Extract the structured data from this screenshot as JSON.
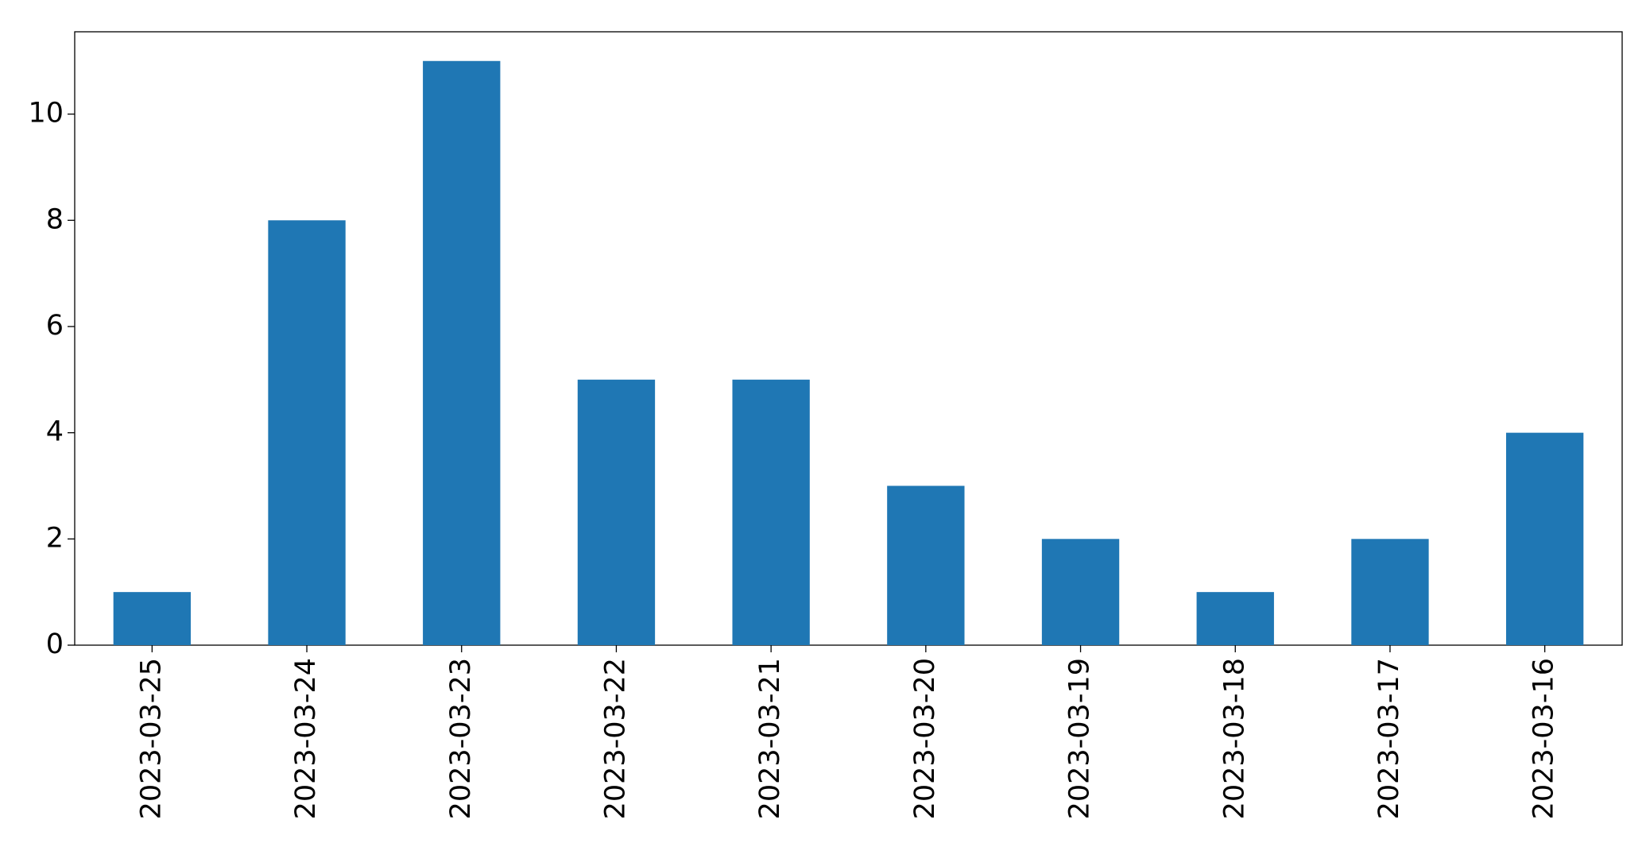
{
  "chart_data": {
    "type": "bar",
    "categories": [
      "2023-03-25",
      "2023-03-24",
      "2023-03-23",
      "2023-03-22",
      "2023-03-21",
      "2023-03-20",
      "2023-03-19",
      "2023-03-18",
      "2023-03-17",
      "2023-03-16"
    ],
    "values": [
      1,
      8,
      11,
      5,
      5,
      3,
      2,
      1,
      2,
      4
    ],
    "color": "#1f77b4",
    "ylim": [
      0,
      11.55
    ],
    "yticks": [
      0,
      2,
      4,
      6,
      8,
      10
    ],
    "grid": false
  }
}
